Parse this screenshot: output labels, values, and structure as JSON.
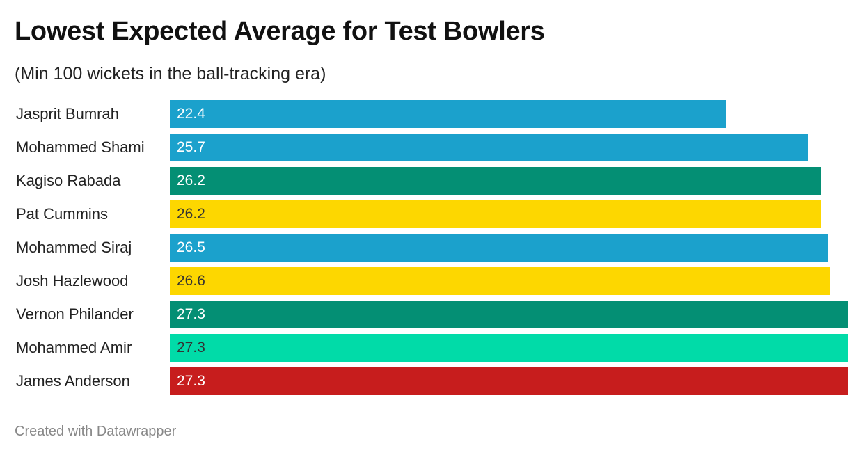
{
  "chart_data": {
    "type": "bar",
    "orientation": "horizontal",
    "title": "Lowest Expected Average for Test Bowlers",
    "subtitle": "(Min 100 wickets in the ball-tracking era)",
    "xlabel": "",
    "ylabel": "",
    "xlim": [
      0,
      27.3
    ],
    "grid": false,
    "categories": [
      "Jasprit Bumrah",
      "Mohammed Shami",
      "Kagiso Rabada",
      "Pat Cummins",
      "Mohammed Siraj",
      "Josh Hazlewood",
      "Vernon Philander",
      "Mohammed Amir",
      "James Anderson"
    ],
    "values": [
      22.4,
      25.7,
      26.2,
      26.2,
      26.5,
      26.6,
      27.3,
      27.3,
      27.3
    ],
    "value_labels": [
      "22.4",
      "25.7",
      "26.2",
      "26.2",
      "26.5",
      "26.6",
      "27.3",
      "27.3",
      "27.3"
    ],
    "bar_colors": [
      "#1ba1cc",
      "#1ba1cc",
      "#048f74",
      "#fdd700",
      "#1ba1cc",
      "#fdd700",
      "#048f74",
      "#01dba8",
      "#c71d1d"
    ],
    "label_colors": [
      "#ffffff",
      "#ffffff",
      "#ffffff",
      "#333333",
      "#ffffff",
      "#333333",
      "#ffffff",
      "#333333",
      "#ffffff"
    ]
  },
  "footer": {
    "credit": "Created with Datawrapper"
  }
}
